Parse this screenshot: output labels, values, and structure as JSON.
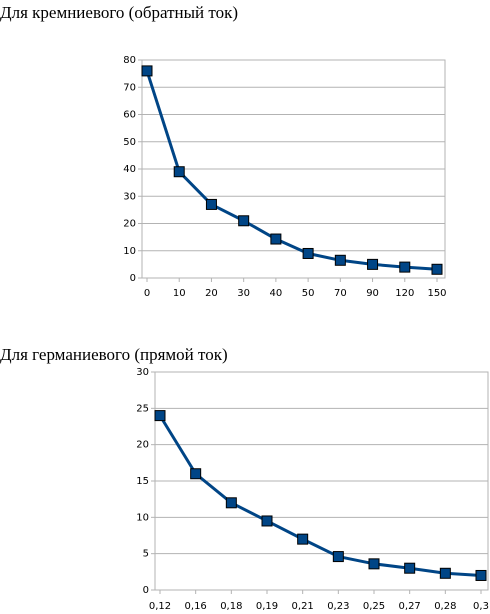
{
  "chart_data": [
    {
      "type": "line",
      "title": "Для кремниевого (обратный ток)",
      "categories": [
        "0",
        "10",
        "20",
        "30",
        "40",
        "50",
        "70",
        "90",
        "120",
        "150"
      ],
      "series": [
        {
          "color": "#004586",
          "values": [
            76,
            39,
            27,
            21,
            14.3,
            9,
            6.5,
            5,
            4,
            3.2
          ]
        }
      ],
      "ylim": [
        0,
        80
      ],
      "yticks": [
        0,
        10,
        20,
        30,
        40,
        50,
        60,
        70,
        80
      ],
      "grid": true
    },
    {
      "type": "line",
      "title": "Для германиевого (прямой ток)",
      "categories": [
        "0,12",
        "0,16",
        "0,18",
        "0,19",
        "0,21",
        "0,23",
        "0,25",
        "0,27",
        "0,28",
        "0,3"
      ],
      "series": [
        {
          "color": "#004586",
          "values": [
            24,
            16,
            12,
            9.5,
            7,
            4.6,
            3.6,
            3,
            2.3,
            2
          ]
        }
      ],
      "ylim": [
        0,
        30
      ],
      "yticks": [
        0,
        5,
        10,
        15,
        20,
        25,
        30
      ],
      "grid": true
    }
  ]
}
